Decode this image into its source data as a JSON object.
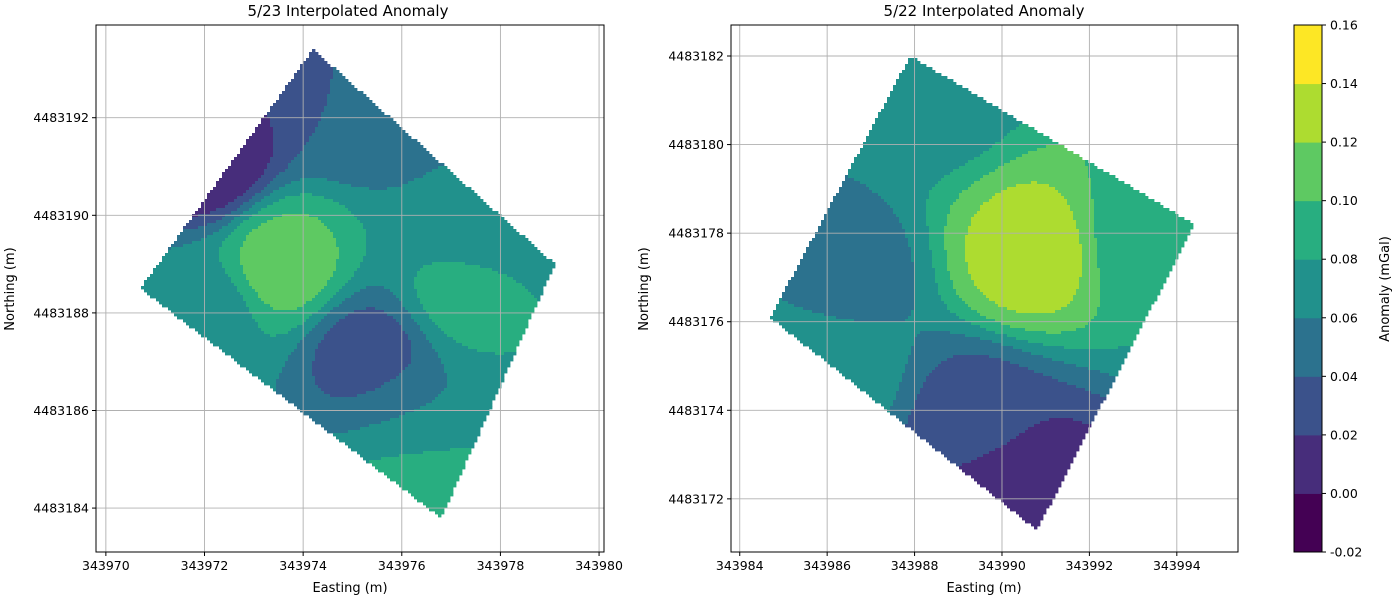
{
  "chart_data": [
    {
      "type": "heatmap",
      "title": "5/23 Interpolated Anomaly",
      "xlabel": "Easting (m)",
      "ylabel": "Northing (m)",
      "xlim": [
        343969.8,
        343980.1
      ],
      "ylim": [
        4483183.1,
        4483193.9
      ],
      "xticks": [
        343970,
        343972,
        343974,
        343976,
        343978,
        343980
      ],
      "yticks": [
        4483184,
        4483186,
        4483188,
        4483190,
        4483192
      ],
      "grid": true,
      "survey_corners": [
        [
          343974.2,
          4483193.4
        ],
        [
          343979.1,
          4483189.0
        ],
        [
          343976.8,
          4483183.8
        ],
        [
          343970.7,
          4483188.5
        ]
      ],
      "features": [
        {
          "kind": "gradient",
          "at": [
            343972.0,
            4483191.2
          ],
          "value": 0.0
        },
        {
          "kind": "gradient",
          "at": [
            343975.0,
            4483192.4
          ],
          "value": 0.04
        },
        {
          "kind": "gradient",
          "at": [
            343977.5,
            4483189.6
          ],
          "value": 0.06
        },
        {
          "kind": "gradient",
          "at": [
            343976.0,
            4483185.8
          ],
          "value": 0.06
        },
        {
          "kind": "gradient",
          "at": [
            343972.0,
            4483188.0
          ],
          "value": 0.07
        },
        {
          "kind": "high",
          "at": [
            343973.6,
            4483189.0
          ],
          "value": 0.11
        },
        {
          "kind": "high",
          "at": [
            343977.3,
            4483188.5
          ],
          "value": 0.09
        },
        {
          "kind": "high",
          "at": [
            343976.2,
            4483184.4
          ],
          "value": 0.1
        },
        {
          "kind": "low",
          "at": [
            343975.3,
            4483187.1
          ],
          "value": 0.03
        }
      ]
    },
    {
      "type": "heatmap",
      "title": "5/22 Interpolated Anomaly",
      "xlabel": "Easting (m)",
      "ylabel": "Northing (m)",
      "xlim": [
        343983.8,
        343995.4
      ],
      "ylim": [
        4483170.8,
        4483182.7
      ],
      "xticks": [
        343984,
        343986,
        343988,
        343990,
        343992,
        343994
      ],
      "yticks": [
        4483172,
        4483174,
        4483176,
        4483178,
        4483180,
        4483182
      ],
      "grid": true,
      "survey_corners": [
        [
          343987.9,
          4483182.0
        ],
        [
          343994.4,
          4483178.2
        ],
        [
          343990.8,
          4483171.3
        ],
        [
          343984.7,
          4483176.1
        ]
      ],
      "features": [
        {
          "kind": "gradient",
          "at": [
            343988.5,
            4483181.2
          ],
          "value": 0.07
        },
        {
          "kind": "gradient",
          "at": [
            343986.4,
            4483177.0
          ],
          "value": 0.05
        },
        {
          "kind": "gradient",
          "at": [
            343993.6,
            4483177.8
          ],
          "value": 0.08
        },
        {
          "kind": "gradient",
          "at": [
            343986.0,
            4483175.0
          ],
          "value": 0.08
        },
        {
          "kind": "high",
          "at": [
            343990.6,
            4483177.5
          ],
          "value": 0.13
        },
        {
          "kind": "low",
          "at": [
            343989.5,
            4483173.8
          ],
          "value": 0.03
        },
        {
          "kind": "low",
          "at": [
            343990.3,
            4483172.3
          ],
          "value": 0.0
        }
      ]
    }
  ],
  "colorbar": {
    "label": "Anomaly (mGal)",
    "levels": [
      -0.02,
      0.0,
      0.02,
      0.04,
      0.06,
      0.08,
      0.1,
      0.12,
      0.14,
      0.16
    ],
    "ticks": [
      "-0.02",
      "0.00",
      "0.02",
      "0.04",
      "0.06",
      "0.08",
      "0.10",
      "0.12",
      "0.14",
      "0.16"
    ],
    "colors": [
      "#440154",
      "#472d7b",
      "#3b528b",
      "#2c728e",
      "#21918c",
      "#28ae80",
      "#5ec962",
      "#addc30",
      "#fde725"
    ]
  }
}
